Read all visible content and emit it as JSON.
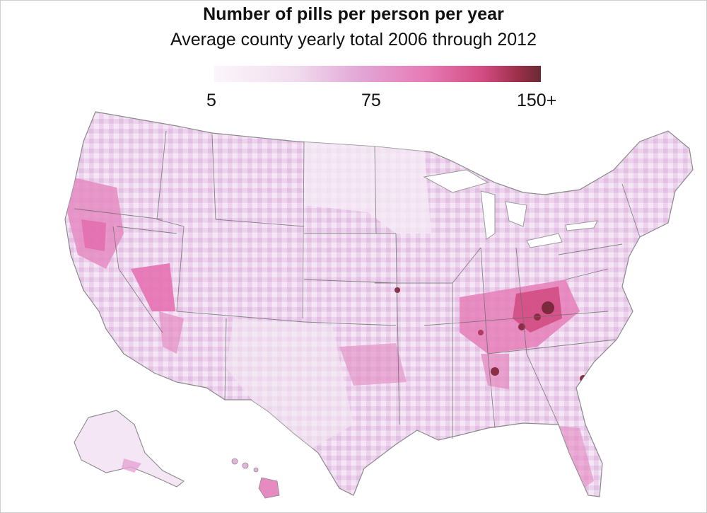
{
  "title": "Number of pills per person per year",
  "subtitle": "Average county yearly total 2006 through 2012",
  "legend": {
    "ticks": [
      "5",
      "75",
      "150+"
    ],
    "gradient_stops": [
      "#fbf6fb",
      "#f1dcee",
      "#e2a6d6",
      "#e77ab5",
      "#d24d83",
      "#9c2f4a",
      "#6a2a33"
    ]
  },
  "map": {
    "region": "United States (counties)",
    "colors": {
      "base": "#ecd2ec",
      "pale": "#f6ebf6",
      "high": "#e46eb2",
      "very_high": "#7a2a3c",
      "border": "#6b6b6b"
    }
  }
}
